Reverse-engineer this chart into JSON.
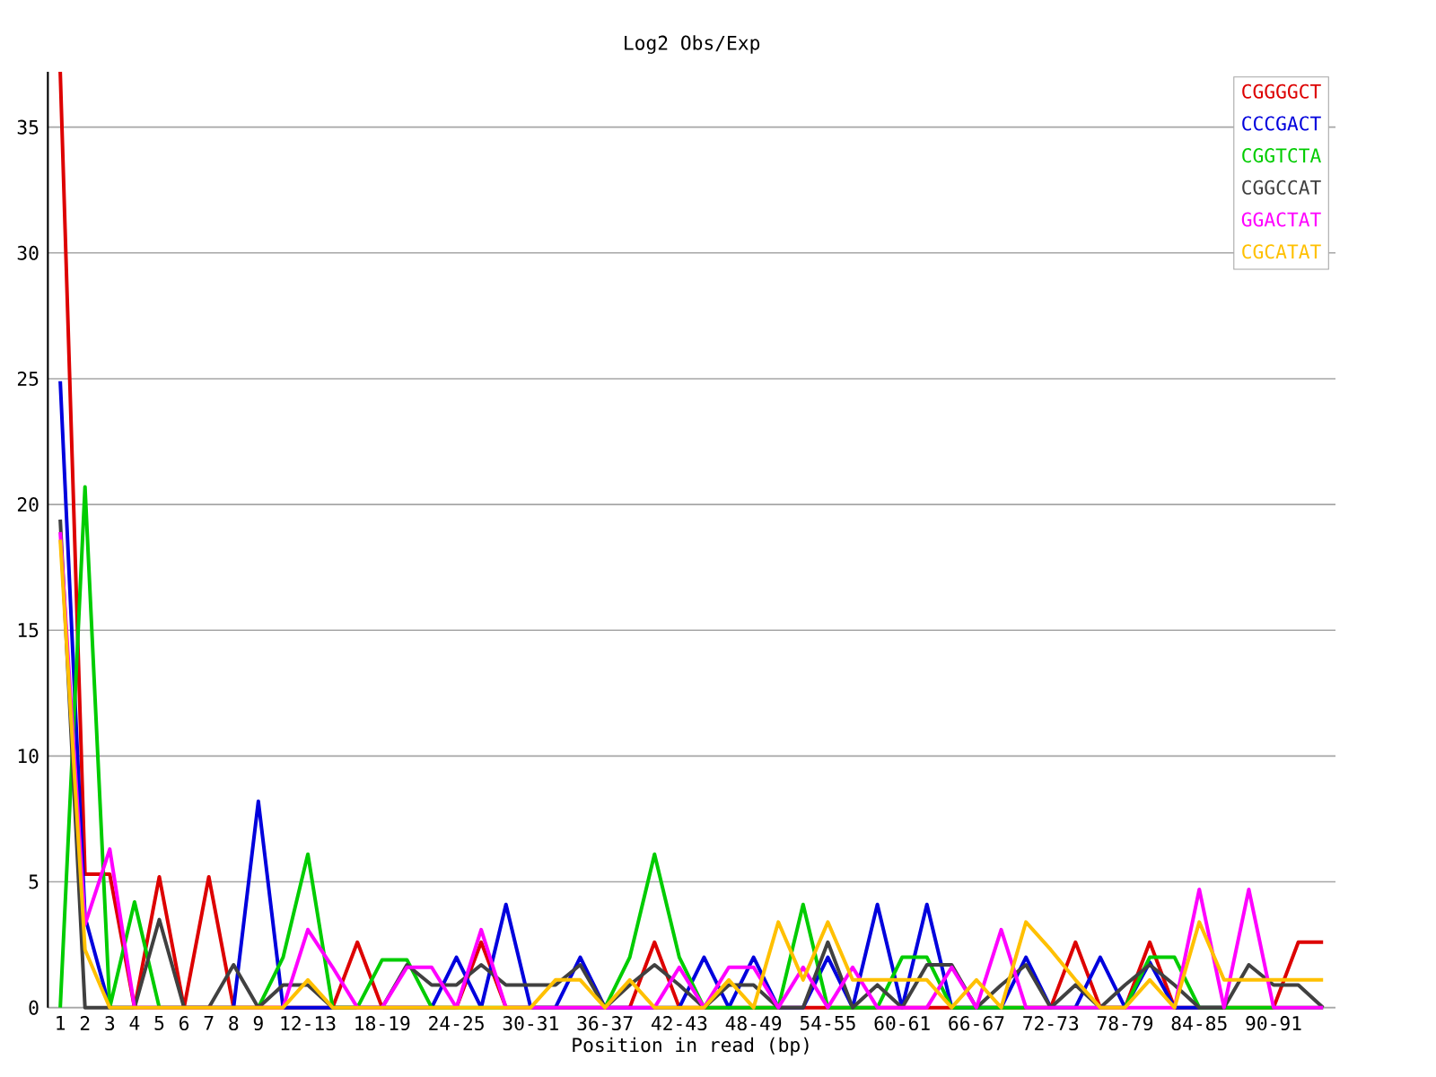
{
  "chart_data": {
    "type": "line",
    "title": "Log2 Obs/Exp",
    "xlabel": "Position in read (bp)",
    "categories": [
      "1",
      "2",
      "3",
      "4",
      "5",
      "6",
      "7",
      "8",
      "9",
      null,
      "12-13",
      null,
      null,
      "18-19",
      null,
      null,
      "24-25",
      null,
      null,
      "30-31",
      null,
      null,
      "36-37",
      null,
      null,
      "42-43",
      null,
      null,
      "48-49",
      null,
      null,
      "54-55",
      null,
      null,
      "60-61",
      null,
      null,
      "66-67",
      null,
      null,
      "72-73",
      null,
      null,
      "78-79",
      null,
      null,
      "84-85",
      null,
      null,
      "90-91",
      null,
      null
    ],
    "series": [
      {
        "name": "CGGGGCT",
        "color": "#dd0000",
        "values": [
          37.2,
          5.3,
          5.3,
          0,
          5.2,
          0,
          5.2,
          0,
          0,
          0,
          0,
          0,
          2.6,
          0,
          0,
          0,
          0,
          2.6,
          0,
          0,
          0,
          0,
          0,
          0,
          2.6,
          0,
          0,
          0,
          0,
          0,
          0,
          0,
          0,
          0,
          0,
          0,
          0,
          0,
          0,
          0,
          0,
          2.6,
          0,
          0,
          2.6,
          0,
          0,
          0,
          0,
          0,
          2.6,
          2.6
        ]
      },
      {
        "name": "CCCGACT",
        "color": "#0000dd",
        "values": [
          24.9,
          3.6,
          0,
          0,
          0,
          0,
          0,
          0,
          8.2,
          0,
          0,
          0,
          0,
          0,
          0,
          0,
          2.0,
          0,
          4.1,
          0,
          0,
          2.0,
          0,
          0,
          0,
          0,
          2.0,
          0,
          2.0,
          0,
          0,
          2.0,
          0,
          4.1,
          0,
          4.1,
          0,
          0,
          0,
          2.0,
          0,
          0,
          2.0,
          0,
          1.8,
          0,
          0,
          0,
          null,
          null,
          null,
          null
        ]
      },
      {
        "name": "CGGTCTA",
        "color": "#00cc00",
        "values": [
          0,
          20.7,
          0,
          4.2,
          0,
          0,
          0,
          0,
          0,
          2.0,
          6.1,
          0,
          0,
          1.9,
          1.9,
          0,
          0,
          0,
          0,
          0,
          0,
          0,
          0,
          2.0,
          6.1,
          2.0,
          0,
          0,
          0,
          0,
          4.1,
          0,
          0,
          0,
          2.0,
          2.0,
          0,
          0,
          0,
          0,
          0,
          0,
          0,
          0,
          2.0,
          2.0,
          0,
          0,
          0,
          0,
          0,
          0
        ]
      },
      {
        "name": "CGGCCAT",
        "color": "#404040",
        "values": [
          19.4,
          0,
          0,
          0,
          3.5,
          0,
          0,
          1.7,
          0,
          0.9,
          0.9,
          0,
          0,
          0,
          1.7,
          0.9,
          0.9,
          1.7,
          0.9,
          0.9,
          0.9,
          1.7,
          0,
          0.9,
          1.7,
          0.9,
          0,
          0.9,
          0.9,
          0,
          0,
          2.6,
          0,
          0.9,
          0,
          1.7,
          1.7,
          0,
          0.9,
          1.7,
          0,
          0.9,
          0,
          0.9,
          1.7,
          0.9,
          0,
          0,
          1.7,
          0.9,
          0.9,
          0
        ]
      },
      {
        "name": "GGACTAT",
        "color": "#ff00ff",
        "values": [
          18.9,
          3.3,
          6.3,
          0,
          0,
          0,
          0,
          0,
          0,
          0,
          3.1,
          1.6,
          0,
          0,
          1.6,
          1.6,
          0,
          3.1,
          0,
          0,
          0,
          0,
          0,
          0,
          0,
          1.6,
          0,
          1.6,
          1.6,
          0,
          1.6,
          0,
          1.6,
          0,
          0,
          0,
          1.6,
          0,
          3.1,
          0,
          0,
          0,
          0,
          0,
          0,
          0,
          4.7,
          0,
          4.7,
          0,
          0,
          0
        ]
      },
      {
        "name": "CGCATAT",
        "color": "#ffc000",
        "values": [
          18.6,
          2.3,
          0,
          0,
          0,
          0,
          0,
          0,
          0,
          0,
          1.1,
          0,
          0,
          0,
          0,
          0,
          0,
          0,
          0,
          0,
          1.1,
          1.1,
          0,
          1.1,
          0,
          0,
          0,
          1.1,
          0,
          3.4,
          1.1,
          3.4,
          1.1,
          1.1,
          1.1,
          1.1,
          0,
          1.1,
          0,
          3.4,
          2.3,
          1.1,
          0,
          0,
          1.1,
          0,
          3.4,
          1.1,
          1.1,
          1.1,
          1.1,
          1.1
        ]
      }
    ],
    "ylim": [
      0,
      37.2
    ],
    "yticks": [
      0,
      5,
      10,
      15,
      20,
      25,
      30,
      35
    ],
    "grid": "y",
    "legend": "top right"
  }
}
